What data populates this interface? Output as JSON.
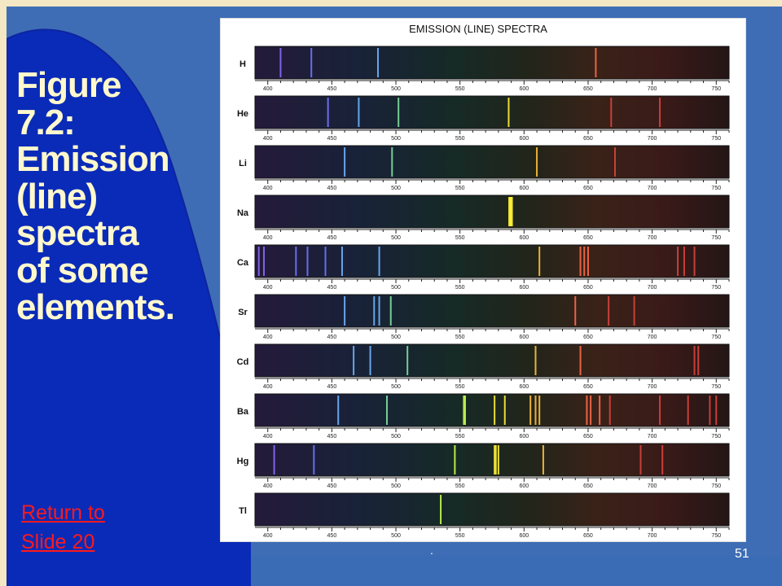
{
  "slide": {
    "title_lines": [
      "Figure",
      "7.2:",
      "Emission",
      "(line)",
      "spectra",
      "of some",
      "elements."
    ],
    "link_lines": [
      "Return to",
      "Slide 20"
    ],
    "page_number": "51",
    "footer_mark": ".",
    "colors": {
      "background": "#3e6db5",
      "swoosh_dark": "#0a2bb8",
      "title": "#fff8cc",
      "link": "#ff1a1a",
      "frame": "#f3e7c4"
    }
  },
  "figure": {
    "title": "EMISSION (LINE) SPECTRA",
    "axis_ticks": [
      "400",
      "450",
      "500",
      "550",
      "600",
      "650",
      "700",
      "750"
    ],
    "wavelength_range": [
      390,
      760
    ],
    "spectra": [
      {
        "element": "H",
        "lines": [
          410,
          434,
          486,
          656
        ]
      },
      {
        "element": "He",
        "lines": [
          447,
          471,
          502,
          588,
          668,
          706
        ]
      },
      {
        "element": "Li",
        "lines": [
          460,
          497,
          610,
          671
        ]
      },
      {
        "element": "Na",
        "lines": [
          589,
          590
        ]
      },
      {
        "element": "Ca",
        "lines": [
          393,
          397,
          422,
          431,
          445,
          458,
          487,
          612,
          644,
          647,
          650,
          720,
          725,
          733
        ]
      },
      {
        "element": "Sr",
        "lines": [
          460,
          483,
          487,
          496,
          640,
          666,
          686
        ]
      },
      {
        "element": "Cd",
        "lines": [
          467,
          480,
          509,
          609,
          644,
          733,
          736
        ]
      },
      {
        "element": "Ba",
        "lines": [
          455,
          493,
          553,
          554,
          577,
          585,
          605,
          609,
          612,
          649,
          652,
          659,
          667,
          706,
          728,
          745,
          750
        ]
      },
      {
        "element": "Hg",
        "lines": [
          405,
          436,
          546,
          577,
          578,
          580,
          615,
          691,
          708
        ]
      },
      {
        "element": "Tl",
        "lines": [
          535
        ]
      }
    ]
  }
}
